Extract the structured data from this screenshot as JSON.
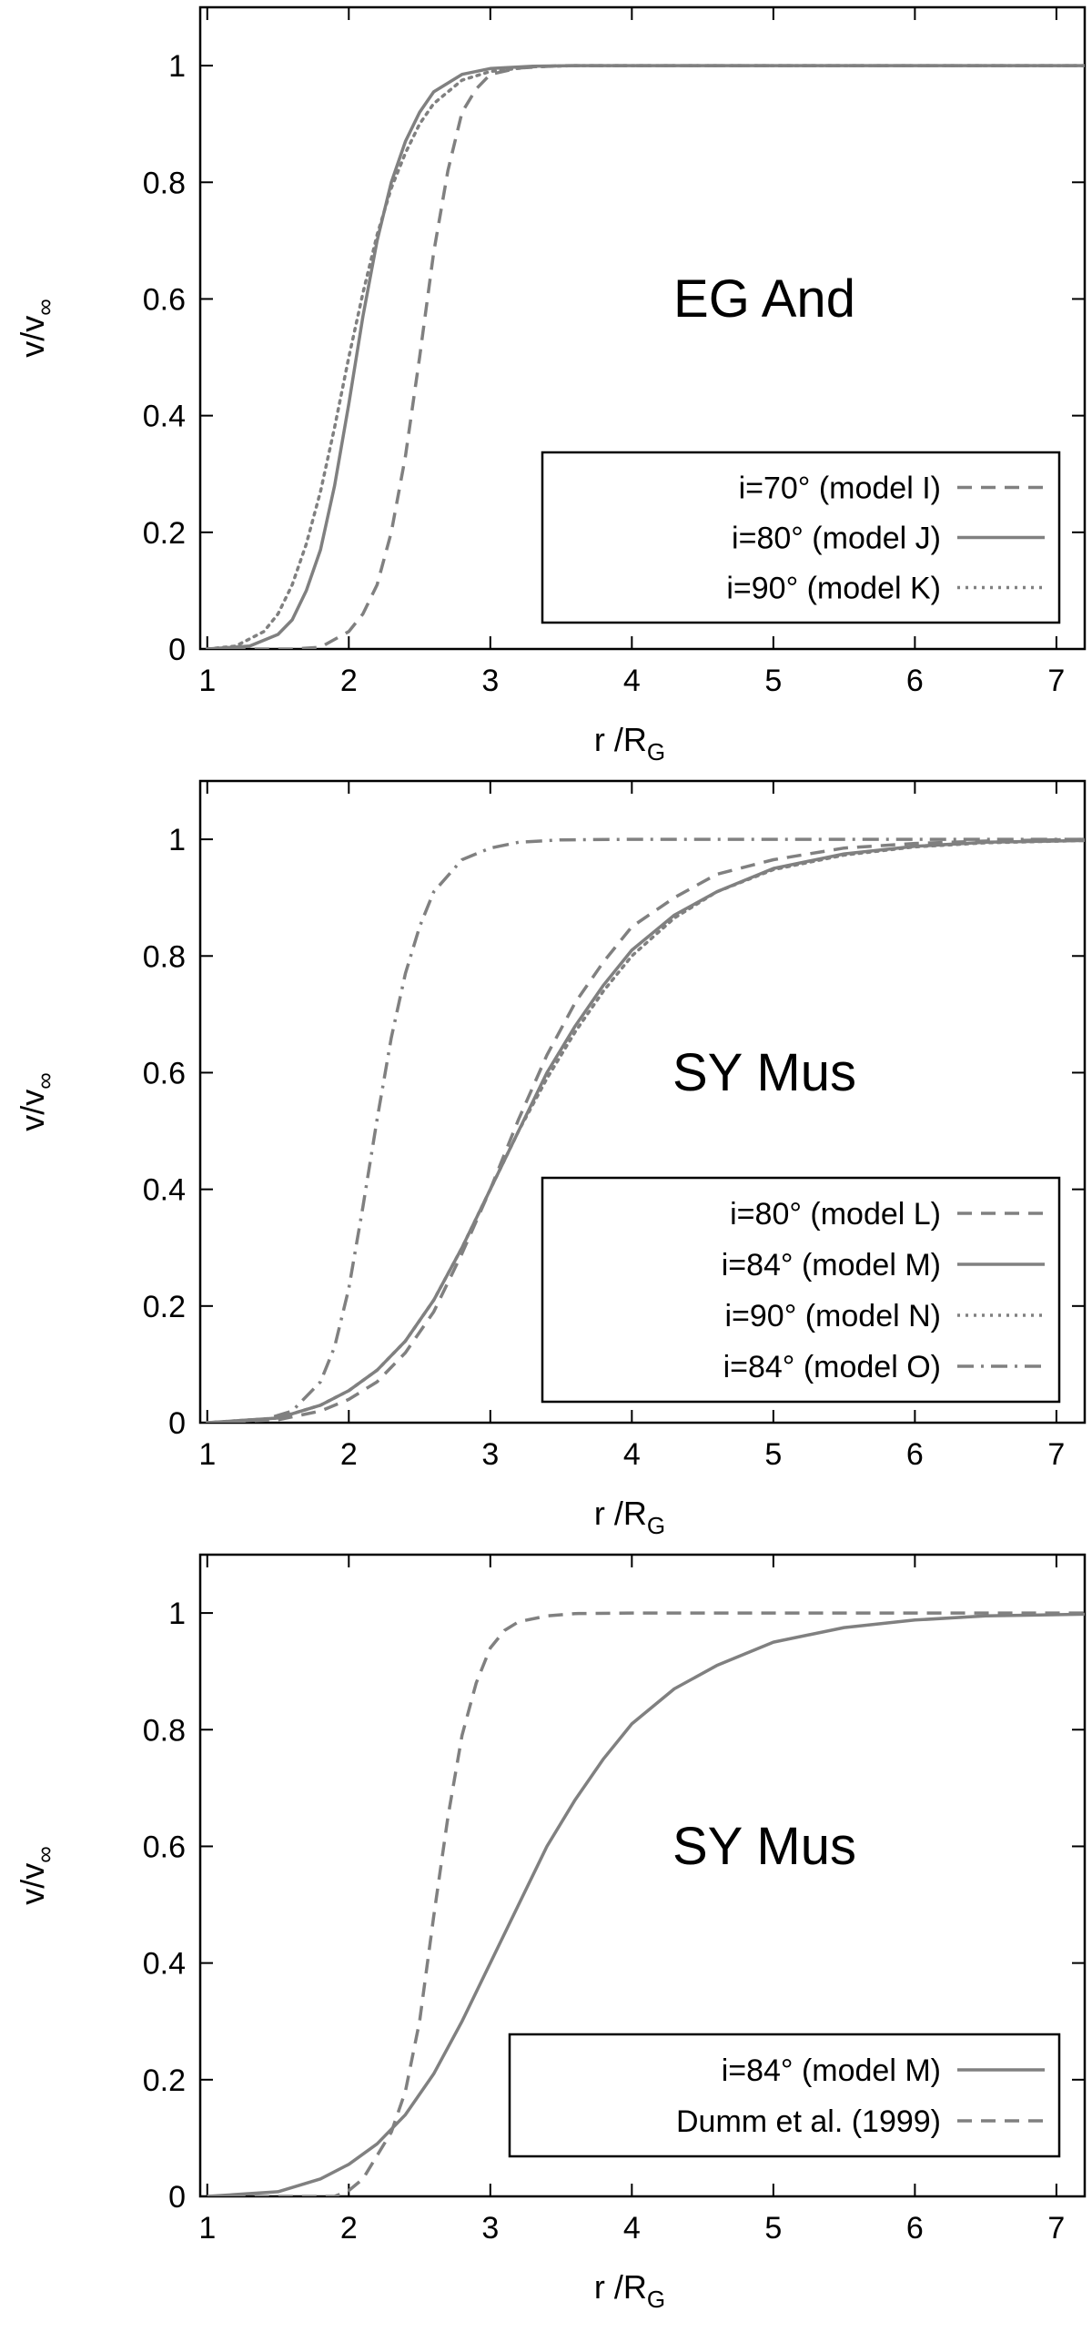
{
  "chart_data": [
    {
      "type": "line",
      "title": "EG And",
      "xlabel": "r /R",
      "xlabel_sub": "G",
      "ylabel": "v/v",
      "ylabel_sub": "∞",
      "xlim": [
        0.95,
        7.2
      ],
      "ylim": [
        0,
        1.1
      ],
      "xticks": [
        1,
        2,
        3,
        4,
        5,
        6,
        7
      ],
      "yticks": [
        0,
        0.2,
        0.4,
        0.6,
        0.8,
        1
      ],
      "grid": false,
      "legend_position": "bottom-right",
      "series": [
        {
          "name": "i=70° (model I)",
          "dash": "dashed",
          "x": [
            1.0,
            1.6,
            1.8,
            2.0,
            2.1,
            2.2,
            2.3,
            2.4,
            2.5,
            2.6,
            2.7,
            2.8,
            2.9,
            3.0,
            3.2,
            3.5,
            4.0,
            5.0,
            6.0,
            7.2
          ],
          "y": [
            0,
            0,
            0.003,
            0.03,
            0.06,
            0.11,
            0.2,
            0.33,
            0.5,
            0.68,
            0.82,
            0.92,
            0.96,
            0.985,
            0.996,
            1.0,
            1.0,
            1.0,
            1.0,
            1.0
          ]
        },
        {
          "name": "i=80° (model J)",
          "dash": "solid",
          "x": [
            1.0,
            1.3,
            1.5,
            1.6,
            1.7,
            1.8,
            1.9,
            2.0,
            2.1,
            2.2,
            2.3,
            2.4,
            2.5,
            2.6,
            2.8,
            3.0,
            3.3,
            3.6,
            4.0,
            5.0,
            6.0,
            7.2
          ],
          "y": [
            0,
            0.005,
            0.025,
            0.05,
            0.1,
            0.17,
            0.28,
            0.42,
            0.57,
            0.7,
            0.8,
            0.87,
            0.92,
            0.955,
            0.985,
            0.995,
            0.999,
            1.0,
            1.0,
            1.0,
            1.0,
            1.0
          ]
        },
        {
          "name": "i=90° (model K)",
          "dash": "dotted",
          "x": [
            1.0,
            1.2,
            1.4,
            1.5,
            1.6,
            1.7,
            1.8,
            1.9,
            2.0,
            2.1,
            2.2,
            2.3,
            2.4,
            2.5,
            2.6,
            2.8,
            3.0,
            3.3,
            3.6,
            4.0,
            5.0,
            6.0,
            7.2
          ],
          "y": [
            0,
            0.005,
            0.03,
            0.06,
            0.11,
            0.18,
            0.27,
            0.38,
            0.5,
            0.61,
            0.71,
            0.79,
            0.85,
            0.9,
            0.935,
            0.975,
            0.99,
            0.998,
            1.0,
            1.0,
            1.0,
            1.0,
            1.0
          ]
        }
      ]
    },
    {
      "type": "line",
      "title": "SY Mus",
      "xlabel": "r /R",
      "xlabel_sub": "G",
      "ylabel": "v/v",
      "ylabel_sub": "∞",
      "xlim": [
        0.95,
        7.2
      ],
      "ylim": [
        0,
        1.1
      ],
      "xticks": [
        1,
        2,
        3,
        4,
        5,
        6,
        7
      ],
      "yticks": [
        0,
        0.2,
        0.4,
        0.6,
        0.8,
        1
      ],
      "grid": false,
      "legend_position": "bottom-right",
      "series": [
        {
          "name": "i=80° (model L)",
          "dash": "dashed",
          "x": [
            1.0,
            1.5,
            1.8,
            2.0,
            2.2,
            2.4,
            2.6,
            2.8,
            3.0,
            3.2,
            3.4,
            3.6,
            3.8,
            4.0,
            4.3,
            4.6,
            5.0,
            5.5,
            6.0,
            6.5,
            7.2
          ],
          "y": [
            0,
            0.005,
            0.02,
            0.04,
            0.07,
            0.12,
            0.19,
            0.29,
            0.4,
            0.52,
            0.63,
            0.72,
            0.79,
            0.85,
            0.9,
            0.94,
            0.965,
            0.985,
            0.993,
            0.997,
            1.0
          ]
        },
        {
          "name": "i=84° (model M)",
          "dash": "solid",
          "x": [
            1.0,
            1.5,
            1.8,
            2.0,
            2.2,
            2.4,
            2.6,
            2.8,
            3.0,
            3.2,
            3.4,
            3.6,
            3.8,
            4.0,
            4.3,
            4.6,
            5.0,
            5.5,
            6.0,
            6.5,
            7.2
          ],
          "y": [
            0,
            0.008,
            0.03,
            0.055,
            0.09,
            0.14,
            0.21,
            0.3,
            0.4,
            0.5,
            0.6,
            0.68,
            0.75,
            0.81,
            0.87,
            0.91,
            0.95,
            0.975,
            0.988,
            0.995,
            0.998
          ]
        },
        {
          "name": "i=90° (model N)",
          "dash": "dotted",
          "x": [
            1.0,
            1.5,
            1.8,
            2.0,
            2.2,
            2.4,
            2.6,
            2.8,
            3.0,
            3.2,
            3.4,
            3.6,
            3.8,
            4.0,
            4.3,
            4.6,
            5.0,
            5.5,
            6.0,
            6.5,
            7.2
          ],
          "y": [
            0,
            0.008,
            0.03,
            0.055,
            0.09,
            0.14,
            0.21,
            0.3,
            0.4,
            0.5,
            0.59,
            0.67,
            0.74,
            0.8,
            0.865,
            0.91,
            0.948,
            0.973,
            0.987,
            0.994,
            0.998
          ]
        },
        {
          "name": "i=84° (model O)",
          "dash": "dashdot",
          "x": [
            1.0,
            1.4,
            1.6,
            1.8,
            1.9,
            2.0,
            2.1,
            2.2,
            2.3,
            2.4,
            2.5,
            2.6,
            2.8,
            3.0,
            3.2,
            3.5,
            4.0,
            5.0,
            6.0,
            7.2
          ],
          "y": [
            0,
            0.005,
            0.02,
            0.07,
            0.13,
            0.23,
            0.37,
            0.52,
            0.66,
            0.77,
            0.85,
            0.91,
            0.965,
            0.985,
            0.995,
            0.999,
            1.0,
            1.0,
            1.0,
            1.0
          ]
        }
      ]
    },
    {
      "type": "line",
      "title": "SY Mus",
      "xlabel": "r /R",
      "xlabel_sub": "G",
      "ylabel": "v/v",
      "ylabel_sub": "∞",
      "xlim": [
        0.95,
        7.2
      ],
      "ylim": [
        0,
        1.1
      ],
      "xticks": [
        1,
        2,
        3,
        4,
        5,
        6,
        7
      ],
      "yticks": [
        0,
        0.2,
        0.4,
        0.6,
        0.8,
        1
      ],
      "grid": false,
      "legend_position": "bottom-right",
      "series": [
        {
          "name": "i=84° (model M)",
          "dash": "solid",
          "x": [
            1.0,
            1.5,
            1.8,
            2.0,
            2.2,
            2.4,
            2.6,
            2.8,
            3.0,
            3.2,
            3.4,
            3.6,
            3.8,
            4.0,
            4.3,
            4.6,
            5.0,
            5.5,
            6.0,
            6.5,
            7.2
          ],
          "y": [
            0,
            0.008,
            0.03,
            0.055,
            0.09,
            0.14,
            0.21,
            0.3,
            0.4,
            0.5,
            0.6,
            0.68,
            0.75,
            0.81,
            0.87,
            0.91,
            0.95,
            0.975,
            0.988,
            0.995,
            0.998
          ]
        },
        {
          "name": "Dumm et al. (1999)",
          "dash": "dashed",
          "x": [
            1.0,
            1.9,
            2.0,
            2.1,
            2.2,
            2.3,
            2.4,
            2.5,
            2.6,
            2.7,
            2.8,
            2.9,
            3.0,
            3.1,
            3.2,
            3.4,
            3.6,
            4.0,
            5.0,
            6.0,
            7.2
          ],
          "y": [
            0,
            0,
            0.01,
            0.03,
            0.07,
            0.11,
            0.18,
            0.3,
            0.48,
            0.65,
            0.79,
            0.88,
            0.94,
            0.97,
            0.985,
            0.995,
            0.999,
            1.0,
            1.0,
            1.0,
            1.0
          ]
        }
      ]
    }
  ]
}
